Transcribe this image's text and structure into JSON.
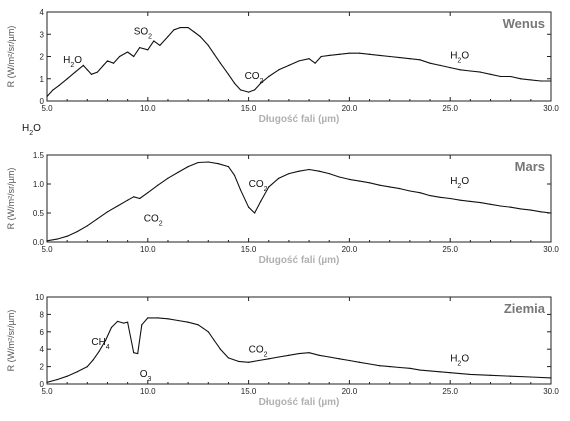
{
  "chart_data": [
    {
      "type": "line",
      "title": "Wenus",
      "xlabel": "Długość fali (µm)",
      "ylabel": "R (W/m²/sr/µm)",
      "xlim": [
        5.0,
        30.0
      ],
      "ylim": [
        0,
        4
      ],
      "xticks": [
        "5.0",
        "10.0",
        "15.0",
        "20.0",
        "25.0",
        "30.0"
      ],
      "yticks": [
        "0",
        "1",
        "2",
        "3",
        "4"
      ],
      "annotations": [
        {
          "label": "H2O",
          "x": 5.8,
          "y": 1.7
        },
        {
          "label": "SO2",
          "x": 9.3,
          "y": 3.0
        },
        {
          "label": "CO2",
          "x": 14.8,
          "y": 1.0
        },
        {
          "label": "H2O",
          "x": 25.0,
          "y": 1.9
        }
      ],
      "series": [
        {
          "x": [
            5.0,
            5.3,
            5.6,
            6.0,
            6.4,
            6.8,
            7.0,
            7.2,
            7.5,
            7.8,
            8.0,
            8.3,
            8.6,
            9.0,
            9.3,
            9.6,
            10.0,
            10.3,
            10.6,
            11.0,
            11.3,
            11.6,
            12.0,
            12.3,
            12.6,
            13.0,
            13.3,
            13.6,
            14.0,
            14.3,
            14.6,
            15.0,
            15.3,
            15.6,
            16.0,
            16.5,
            17.0,
            17.5,
            18.0,
            18.3,
            18.6,
            19.0,
            19.5,
            20.0,
            20.5,
            21.0,
            21.5,
            22.0,
            22.5,
            23.0,
            23.5,
            24.0,
            24.5,
            25.0,
            25.5,
            26.0,
            26.5,
            27.0,
            27.5,
            28.0,
            28.5,
            29.0,
            29.5,
            30.0
          ],
          "y": [
            0.2,
            0.5,
            0.7,
            1.0,
            1.3,
            1.6,
            1.4,
            1.2,
            1.3,
            1.6,
            1.8,
            1.7,
            2.0,
            2.2,
            2.0,
            2.4,
            2.3,
            2.7,
            2.5,
            2.9,
            3.2,
            3.3,
            3.3,
            3.1,
            2.9,
            2.5,
            2.1,
            1.7,
            1.2,
            0.8,
            0.5,
            0.4,
            0.5,
            0.8,
            1.1,
            1.4,
            1.6,
            1.8,
            1.9,
            1.7,
            2.0,
            2.05,
            2.1,
            2.15,
            2.15,
            2.1,
            2.05,
            2.0,
            1.95,
            1.9,
            1.85,
            1.7,
            1.6,
            1.5,
            1.4,
            1.35,
            1.3,
            1.2,
            1.1,
            1.1,
            1.0,
            0.95,
            0.9,
            0.9
          ]
        }
      ]
    },
    {
      "type": "line",
      "title": "Mars",
      "xlabel": "Długość fali (µm)",
      "ylabel": "R (W/m²/sr/µm)",
      "xlim": [
        5.0,
        30.0
      ],
      "ylim": [
        0,
        1.5
      ],
      "xticks": [
        "5.0",
        "10.0",
        "15.0",
        "20.0",
        "25.0",
        "30.0"
      ],
      "yticks": [
        "0.0",
        "0.5",
        "1.0",
        "1.5"
      ],
      "annotations": [
        {
          "label": "CO2",
          "x": 9.8,
          "y": 0.35
        },
        {
          "label": "CO2",
          "x": 15.0,
          "y": 0.95
        },
        {
          "label": "H2O",
          "x": 25.0,
          "y": 1.0
        }
      ],
      "series": [
        {
          "x": [
            5.0,
            5.5,
            6.0,
            6.5,
            7.0,
            7.5,
            8.0,
            8.5,
            9.0,
            9.3,
            9.6,
            10.0,
            10.5,
            11.0,
            11.5,
            12.0,
            12.5,
            13.0,
            13.5,
            14.0,
            14.3,
            14.6,
            15.0,
            15.3,
            15.6,
            16.0,
            16.5,
            17.0,
            17.5,
            18.0,
            18.5,
            19.0,
            19.5,
            20.0,
            20.5,
            21.0,
            21.5,
            22.0,
            22.5,
            23.0,
            23.5,
            24.0,
            24.5,
            25.0,
            25.5,
            26.0,
            26.5,
            27.0,
            27.5,
            28.0,
            28.5,
            29.0,
            29.5,
            30.0
          ],
          "y": [
            0.02,
            0.05,
            0.1,
            0.18,
            0.28,
            0.4,
            0.52,
            0.62,
            0.72,
            0.78,
            0.75,
            0.85,
            0.98,
            1.1,
            1.2,
            1.3,
            1.37,
            1.38,
            1.35,
            1.3,
            1.15,
            0.9,
            0.6,
            0.5,
            0.7,
            0.95,
            1.1,
            1.18,
            1.22,
            1.25,
            1.22,
            1.18,
            1.12,
            1.08,
            1.05,
            1.02,
            0.98,
            0.95,
            0.92,
            0.88,
            0.85,
            0.8,
            0.77,
            0.75,
            0.72,
            0.7,
            0.68,
            0.65,
            0.62,
            0.6,
            0.57,
            0.55,
            0.52,
            0.5
          ]
        }
      ]
    },
    {
      "type": "line",
      "title": "Ziemia",
      "xlabel": "Długość fali (µm)",
      "ylabel": "R (W/m²/sr/µm)",
      "xlim": [
        5.0,
        30.0
      ],
      "ylim": [
        0,
        10
      ],
      "xticks": [
        "5.0",
        "10.0",
        "15.0",
        "20.0",
        "25.0",
        "30.0"
      ],
      "yticks": [
        "0",
        "2",
        "4",
        "6",
        "8",
        "10"
      ],
      "annotations": [
        {
          "label": "CH4",
          "x": 7.2,
          "y": 4.5
        },
        {
          "label": "O3",
          "x": 9.6,
          "y": 0.8
        },
        {
          "label": "CO2",
          "x": 15.0,
          "y": 3.6
        },
        {
          "label": "H2O",
          "x": 25.0,
          "y": 2.6
        }
      ],
      "series": [
        {
          "x": [
            5.0,
            5.5,
            6.0,
            6.5,
            7.0,
            7.3,
            7.6,
            7.9,
            8.2,
            8.5,
            8.8,
            9.0,
            9.3,
            9.5,
            9.7,
            10.0,
            10.5,
            11.0,
            11.5,
            12.0,
            12.5,
            13.0,
            13.3,
            13.6,
            14.0,
            14.5,
            15.0,
            15.5,
            16.0,
            16.5,
            17.0,
            17.5,
            18.0,
            18.5,
            19.0,
            19.5,
            20.0,
            20.5,
            21.0,
            21.5,
            22.0,
            22.5,
            23.0,
            23.5,
            24.0,
            24.5,
            25.0,
            25.5,
            26.0,
            27.0,
            28.0,
            29.0,
            30.0
          ],
          "y": [
            0.2,
            0.5,
            0.9,
            1.4,
            2.0,
            2.8,
            3.8,
            5.0,
            6.5,
            7.2,
            7.0,
            7.1,
            3.6,
            3.5,
            6.8,
            7.6,
            7.6,
            7.5,
            7.3,
            7.1,
            6.8,
            6.0,
            5.0,
            4.0,
            3.0,
            2.6,
            2.5,
            2.7,
            2.9,
            3.1,
            3.3,
            3.5,
            3.6,
            3.3,
            3.1,
            2.9,
            2.7,
            2.5,
            2.3,
            2.1,
            2.0,
            1.9,
            1.8,
            1.6,
            1.5,
            1.4,
            1.3,
            1.2,
            1.1,
            1.0,
            0.9,
            0.8,
            0.7
          ]
        }
      ]
    }
  ],
  "stray_label": "H2O"
}
